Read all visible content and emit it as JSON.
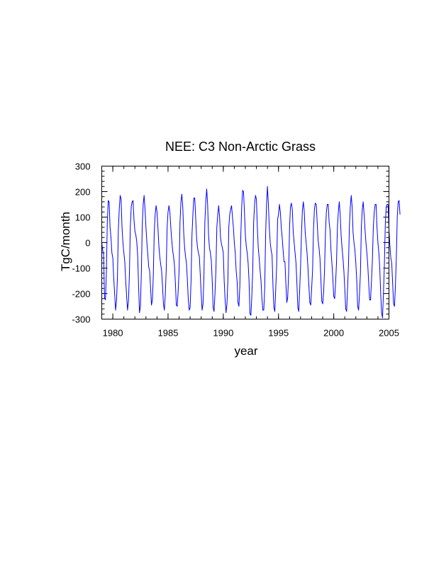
{
  "chart_data": {
    "type": "line",
    "title": "NEE: C3 Non-Arctic Grass",
    "xlabel": "year",
    "ylabel": "TgC/month",
    "xlim": [
      1979,
      2005
    ],
    "ylim": [
      -300,
      300
    ],
    "x_ticks": [
      1980,
      1985,
      1990,
      1995,
      2000,
      2005
    ],
    "x_tick_labels": [
      "1980",
      "1985",
      "1990",
      "1995",
      "2000",
      "2005"
    ],
    "y_ticks": [
      -300,
      -200,
      -100,
      0,
      100,
      200,
      300
    ],
    "y_tick_labels": [
      "-300",
      "-200",
      "-100",
      "0",
      "100",
      "200",
      "300"
    ],
    "grid": false,
    "legend": "none",
    "line_color": "#0000ff",
    "x_start": 1979.0,
    "x_step": 0.083333,
    "series": [
      {
        "values": [
          0,
          -30,
          -45,
          -215,
          -225,
          -120,
          80,
          165,
          160,
          60,
          20,
          -40,
          -60,
          -140,
          -200,
          -265,
          -230,
          -140,
          50,
          130,
          185,
          170,
          60,
          0,
          -40,
          -75,
          -150,
          -210,
          -265,
          -230,
          -130,
          60,
          140,
          160,
          165,
          90,
          45,
          30,
          5,
          -50,
          -170,
          -275,
          -250,
          -120,
          70,
          150,
          185,
          130,
          60,
          0,
          -45,
          -95,
          -110,
          -175,
          -245,
          -225,
          -130,
          40,
          110,
          145,
          120,
          60,
          -10,
          -55,
          -85,
          -110,
          -170,
          -240,
          -265,
          -205,
          -110,
          60,
          120,
          145,
          120,
          60,
          10,
          -30,
          -55,
          -90,
          -160,
          -245,
          -250,
          -190,
          -110,
          80,
          160,
          190,
          140,
          40,
          -20,
          -55,
          -80,
          -145,
          -225,
          -265,
          -255,
          -150,
          30,
          110,
          175,
          175,
          100,
          20,
          -20,
          -40,
          -55,
          -125,
          -200,
          -265,
          -240,
          -130,
          80,
          160,
          210,
          150,
          30,
          -20,
          -40,
          -70,
          -150,
          -255,
          -270,
          -200,
          -110,
          60,
          110,
          145,
          100,
          20,
          -5,
          -20,
          -40,
          -150,
          -225,
          -275,
          -240,
          -150,
          60,
          110,
          130,
          145,
          100,
          60,
          0,
          -40,
          -110,
          -150,
          -235,
          -250,
          -170,
          20,
          140,
          205,
          200,
          120,
          30,
          -15,
          -40,
          -80,
          -150,
          -280,
          -285,
          -210,
          -110,
          80,
          150,
          185,
          170,
          60,
          -20,
          -60,
          -110,
          -150,
          -220,
          -265,
          -265,
          -180,
          30,
          150,
          220,
          150,
          60,
          0,
          -30,
          -50,
          -170,
          -255,
          -270,
          -180,
          -90,
          90,
          110,
          150,
          120,
          60,
          20,
          -30,
          -75,
          -75,
          -160,
          -235,
          -215,
          -120,
          60,
          140,
          155,
          130,
          40,
          0,
          -40,
          -80,
          -160,
          -255,
          -270,
          -185,
          -90,
          40,
          130,
          160,
          120,
          40,
          0,
          -40,
          -100,
          -170,
          -235,
          -245,
          -180,
          -110,
          50,
          130,
          155,
          150,
          80,
          10,
          -20,
          -60,
          -140,
          -230,
          -240,
          -195,
          -110,
          40,
          120,
          150,
          150,
          80,
          50,
          -30,
          -80,
          -140,
          -210,
          -220,
          -160,
          -80,
          60,
          120,
          160,
          110,
          30,
          -20,
          -60,
          -110,
          -180,
          -260,
          -270,
          -180,
          -90,
          60,
          140,
          185,
          140,
          40,
          0,
          -30,
          -80,
          -150,
          -250,
          -265,
          -200,
          -120,
          60,
          130,
          160,
          110,
          50,
          0,
          -40,
          -90,
          -160,
          -225,
          -225,
          -150,
          -70,
          60,
          120,
          150,
          150,
          60,
          0,
          -40,
          -100,
          -200,
          -275,
          -295,
          -200,
          -90,
          70,
          140,
          150,
          150,
          50,
          -10,
          -60,
          -80,
          -160,
          -240,
          -250,
          -170,
          -60,
          100,
          160,
          165,
          110
        ]
      }
    ]
  }
}
